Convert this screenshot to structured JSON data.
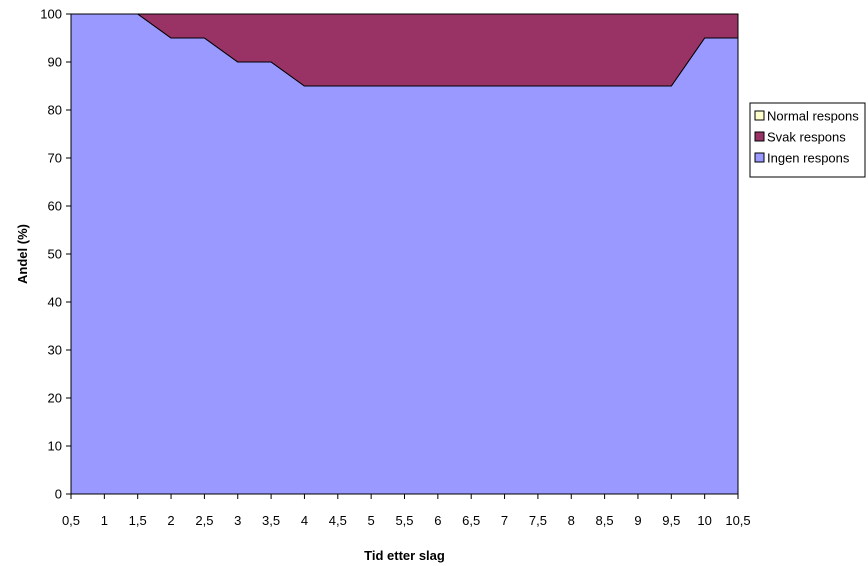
{
  "chart_data": {
    "type": "area",
    "stacked": true,
    "xlabel": "Tid etter slag",
    "ylabel": "Andel (%)",
    "ylim": [
      0,
      100
    ],
    "yticks": [
      0,
      10,
      20,
      30,
      40,
      50,
      60,
      70,
      80,
      90,
      100
    ],
    "categories": [
      "0,5",
      "1",
      "1,5",
      "2",
      "2,5",
      "3",
      "3,5",
      "4",
      "4,5",
      "5",
      "5,5",
      "6",
      "6,5",
      "7",
      "7,5",
      "8",
      "8,5",
      "9",
      "9,5",
      "10",
      "10,5"
    ],
    "grid": false,
    "legend_position": "right",
    "series": [
      {
        "name": "Normal respons",
        "color": "#ffffcc",
        "values": [
          0,
          0,
          0,
          0,
          0,
          0,
          0,
          0,
          0,
          0,
          0,
          0,
          0,
          0,
          0,
          0,
          0,
          0,
          0,
          0,
          0
        ]
      },
      {
        "name": "Svak respons",
        "color": "#993366",
        "values": [
          0,
          0,
          0,
          5,
          5,
          10,
          10,
          15,
          15,
          15,
          15,
          15,
          15,
          15,
          15,
          15,
          15,
          15,
          15,
          5,
          5
        ]
      },
      {
        "name": "Ingen respons",
        "color": "#9999ff",
        "values": [
          100,
          100,
          100,
          95,
          95,
          90,
          90,
          85,
          85,
          85,
          85,
          85,
          85,
          85,
          85,
          85,
          85,
          85,
          85,
          95,
          95
        ]
      }
    ]
  }
}
